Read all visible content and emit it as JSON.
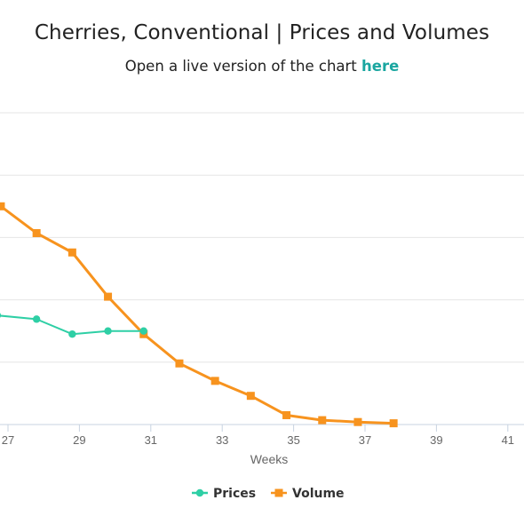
{
  "title": "Cherries, Conventional | Prices and Volumes",
  "subtitle_prefix": "Open a live version of the chart ",
  "subtitle_link": "here",
  "colors": {
    "prices": "#2ecfa5",
    "volume": "#f7931e",
    "link": "#1aa6a0"
  },
  "chart_data": {
    "type": "line",
    "title": "Cherries, Conventional | Prices and Volumes",
    "xlabel": "Weeks",
    "ylabel": "",
    "xlim": [
      26.6,
      41.6
    ],
    "xticks": [
      27,
      29,
      31,
      33,
      35,
      37,
      39,
      41
    ],
    "ylim": [
      0,
      5
    ],
    "grid": true,
    "legend_position": "bottom-center",
    "series": [
      {
        "name": "Prices",
        "marker": "circle",
        "x": [
          26.7,
          27.8,
          28.8,
          29.8,
          30.8
        ],
        "y": [
          1.75,
          1.69,
          1.45,
          1.5,
          1.5
        ]
      },
      {
        "name": "Volume",
        "marker": "square",
        "x": [
          26.6,
          26.8,
          27.8,
          28.8,
          29.8,
          30.8,
          31.8,
          32.8,
          33.8,
          34.8,
          35.8,
          36.8,
          37.8
        ],
        "y": [
          3.6,
          3.5,
          3.07,
          2.76,
          2.05,
          1.45,
          0.98,
          0.7,
          0.46,
          0.15,
          0.07,
          0.04,
          0.02
        ]
      }
    ]
  }
}
